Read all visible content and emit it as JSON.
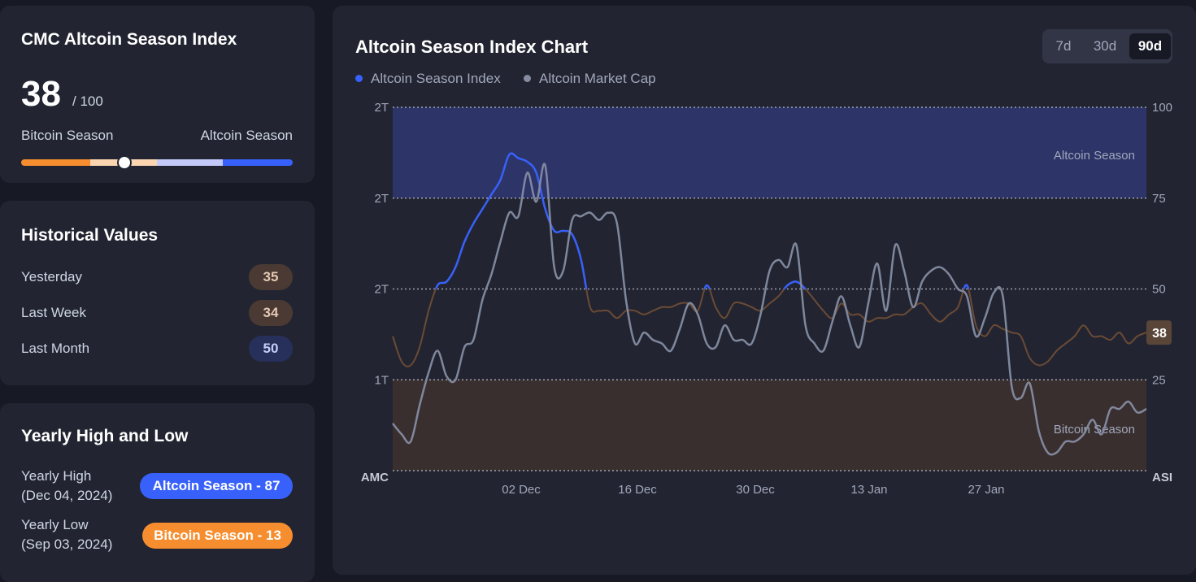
{
  "index_card": {
    "title": "CMC Altcoin Season Index",
    "value": "38",
    "out_of": "/ 100",
    "left_label": "Bitcoin Season",
    "right_label": "Altcoin Season",
    "current_fraction": 0.38,
    "colors": {
      "bitcoin": "#f68d2e",
      "bitcoin_light": "#fbd4b0",
      "altcoin_light": "#c3c9f8",
      "altcoin": "#3861fb"
    }
  },
  "historical": {
    "title": "Historical Values",
    "rows": [
      {
        "label": "Yesterday",
        "value": "35",
        "type": "bitcoin"
      },
      {
        "label": "Last Week",
        "value": "34",
        "type": "bitcoin"
      },
      {
        "label": "Last Month",
        "value": "50",
        "type": "altcoin"
      }
    ]
  },
  "yearly": {
    "title": "Yearly High and Low",
    "high": {
      "label": "Yearly High",
      "date": "(Dec 04, 2024)",
      "badge": "Altcoin Season - 87",
      "color": "#3861fb"
    },
    "low": {
      "label": "Yearly Low",
      "date": "(Sep 03, 2024)",
      "badge": "Bitcoin Season - 13",
      "color": "#f68d2e"
    }
  },
  "chart_card": {
    "title": "Altcoin Season Index Chart",
    "ranges": [
      "7d",
      "30d",
      "90d"
    ],
    "active_range": "90d"
  },
  "chart_data": {
    "type": "line",
    "legend": [
      {
        "name": "Altcoin Season Index",
        "color": "#3861fb"
      },
      {
        "name": "Altcoin Market Cap",
        "color": "#858ca2"
      }
    ],
    "left_axis_ticks": [
      "2T",
      "2T",
      "2T",
      "1T"
    ],
    "left_axis_footer": "AMC",
    "right_axis_ticks": [
      "100",
      "75",
      "50",
      "25"
    ],
    "right_axis_footer": "ASI",
    "right_ylim": [
      0,
      100
    ],
    "x_ticks": [
      "02 Dec",
      "16 Dec",
      "30 Dec",
      "13 Jan",
      "27 Jan"
    ],
    "zones": [
      {
        "label": "Altcoin Season",
        "from": 75,
        "to": 100,
        "color": "#2d3468"
      },
      {
        "label": "Bitcoin Season",
        "from": 0,
        "to": 25,
        "color": "#3a2f2f"
      }
    ],
    "current_label": "38",
    "series": [
      {
        "name": "Altcoin Season Index",
        "values": [
          37,
          30,
          29,
          34,
          44,
          51,
          52,
          56,
          63,
          68,
          72,
          76,
          80,
          87,
          86,
          85,
          82,
          72,
          66,
          66,
          65,
          58,
          45,
          44,
          44,
          42,
          44,
          44,
          43,
          44,
          45,
          45,
          46,
          46,
          44,
          51,
          45,
          42,
          46,
          46,
          45,
          44,
          46,
          48,
          51,
          52,
          50,
          47,
          44,
          42,
          46,
          43,
          43,
          41,
          42,
          42,
          43,
          43,
          45,
          46,
          43,
          41,
          43,
          45,
          51,
          40,
          37,
          40,
          39,
          38,
          37,
          31,
          29,
          30,
          33,
          35,
          37,
          40,
          37,
          37,
          36,
          38,
          35,
          37,
          38
        ],
        "note_end": "38"
      },
      {
        "name": "Altcoin Market Cap",
        "values": [
          13,
          10,
          8,
          18,
          27,
          33,
          26,
          25,
          34,
          36,
          47,
          54,
          63,
          71,
          70,
          82,
          74,
          84,
          56,
          55,
          69,
          70,
          71,
          69,
          71,
          68,
          47,
          35,
          38,
          36,
          35,
          33,
          39,
          46,
          43,
          35,
          34,
          40,
          36,
          36,
          35,
          43,
          55,
          58,
          56,
          62,
          40,
          35,
          33,
          41,
          48,
          40,
          34,
          46,
          57,
          44,
          62,
          55,
          45,
          52,
          55,
          56,
          54,
          50,
          48,
          37,
          42,
          49,
          48,
          23,
          20,
          24,
          11,
          5,
          5,
          8,
          8,
          10,
          14,
          10,
          17,
          17,
          19,
          16,
          17
        ],
        "value_scale": "percent of right axis"
      }
    ]
  }
}
